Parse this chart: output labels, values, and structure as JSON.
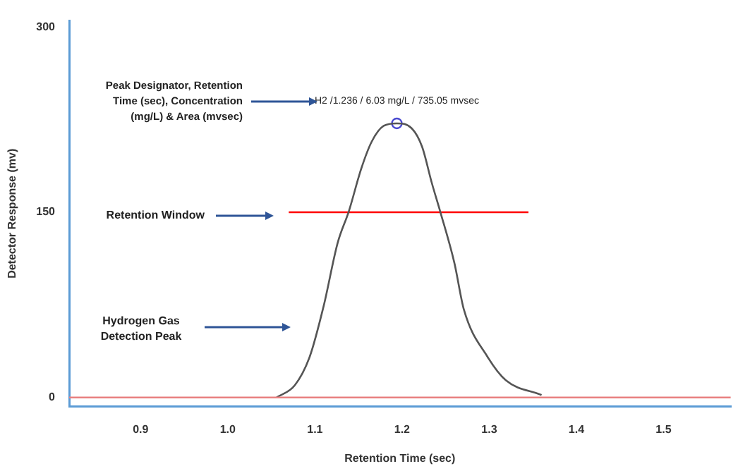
{
  "chart_data": {
    "type": "line",
    "xlabel": "Retention Time (sec)",
    "ylabel": "Detector Response (mv)",
    "xlim": [
      0.818,
      1.577
    ],
    "ylim": [
      -7,
      305
    ],
    "xticks": [
      0.9,
      {
        "value": 1.0,
        "label": "1.0"
      },
      1.1,
      1.2,
      1.3,
      1.4,
      1.5
    ],
    "yticks": [
      0,
      150,
      300
    ],
    "grid": false,
    "legend": false,
    "marker": "none",
    "line_style": "solid",
    "series": [
      {
        "color": "#555555",
        "x": [
          1.056,
          1.077,
          1.094,
          1.11,
          1.126,
          1.139,
          1.153,
          1.165,
          1.179,
          1.194,
          1.211,
          1.223,
          1.234,
          1.244,
          1.26,
          1.271,
          1.298,
          1.319,
          1.36
        ],
        "values": [
          0,
          10,
          33,
          74,
          125,
          151,
          185,
          207,
          220,
          222,
          218,
          203,
          174,
          150,
          109,
          71,
          33,
          14,
          2
        ]
      },
      {
        "type": "line",
        "color": "#ff0000",
        "x": [
          1.07,
          1.345
        ],
        "values": [
          150,
          150
        ]
      },
      {
        "type": "scatter",
        "color": "#4a4ad0",
        "marker": "circle",
        "x": [
          1.194
        ],
        "values": [
          222
        ]
      }
    ],
    "ref_lines": [
      {
        "axis": "y",
        "value": 0,
        "color": "#e88080"
      }
    ],
    "annotations": [
      {
        "text": "H2 /1.236 / 6.03 mg/L / 735.05 mvsec",
        "x": 1.194,
        "y": 222
      },
      "Peak Designator, Retention Time (sec), Concentration (mg/L) & Area (mvsec)",
      "Retention  Window",
      "Hydrogen Gas Detection Peak"
    ]
  }
}
